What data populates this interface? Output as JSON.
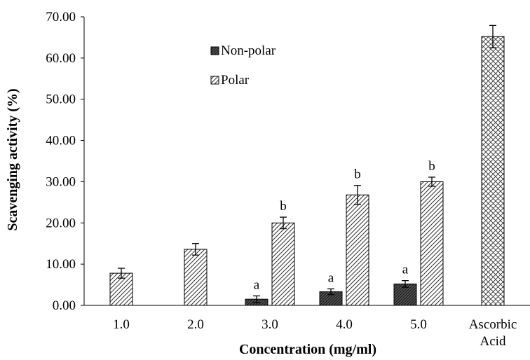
{
  "chart_data": {
    "type": "bar",
    "xlabel": "Concentration (mg/ml)",
    "ylabel": "Scavenging activity (%)",
    "ylim": [
      0,
      70
    ],
    "yticks": [
      "0.00",
      "10.00",
      "20.00",
      "30.00",
      "40.00",
      "50.00",
      "60.00",
      "70.00"
    ],
    "categories": [
      "1.0",
      "2.0",
      "3.0",
      "4.0",
      "5.0",
      "Ascorbic Acid"
    ],
    "category_lines": [
      [
        "1.0"
      ],
      [
        "2.0"
      ],
      [
        "3.0"
      ],
      [
        "4.0"
      ],
      [
        "5.0"
      ],
      [
        "Ascorbic",
        "Acid"
      ]
    ],
    "legend": {
      "position": "top-left",
      "entries": [
        "Non-polar",
        "Polar"
      ]
    },
    "series": [
      {
        "name": "Non-polar",
        "pattern": "dense-diagonal-dark",
        "values": [
          null,
          null,
          1.5,
          3.3,
          5.2,
          null
        ],
        "errors": [
          null,
          null,
          0.8,
          0.7,
          0.8,
          null
        ],
        "labels": [
          null,
          null,
          "a",
          "a",
          "a",
          null
        ]
      },
      {
        "name": "Polar",
        "pattern": "diagonal-hatch",
        "values": [
          7.8,
          13.6,
          20.0,
          26.8,
          30.0,
          null
        ],
        "errors": [
          1.2,
          1.4,
          1.4,
          2.3,
          1.1,
          null
        ],
        "labels": [
          null,
          null,
          "b",
          "b",
          "b",
          null
        ]
      },
      {
        "pattern": "cross-hatch",
        "values": [
          null,
          null,
          null,
          null,
          null,
          65.2
        ],
        "errors": [
          null,
          null,
          null,
          null,
          null,
          2.7
        ],
        "labels": [
          null,
          null,
          null,
          null,
          null,
          null
        ]
      }
    ]
  }
}
